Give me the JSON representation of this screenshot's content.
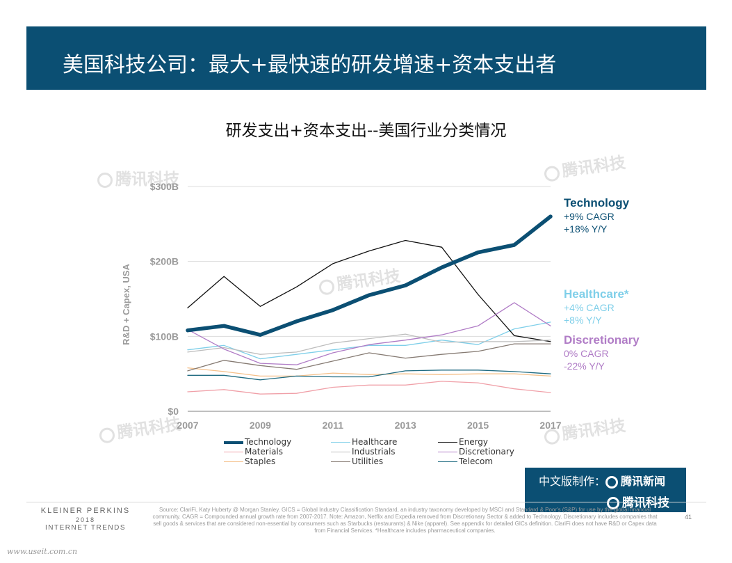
{
  "header": {
    "title": "美国科技公司：最大+最快速的研发增速+资本支出者"
  },
  "watermark_text": "腾讯科技",
  "chart_data": {
    "type": "line",
    "title": "研发支出+资本支出--美国行业分类情况",
    "ylabel": "R&D + Capex, USA",
    "xlabel": "",
    "x": [
      2007,
      2008,
      2009,
      2010,
      2011,
      2012,
      2013,
      2014,
      2015,
      2016,
      2017
    ],
    "x_ticks": [
      "2007",
      "2009",
      "2011",
      "2013",
      "2015",
      "2017"
    ],
    "y_ticks": [
      "$0",
      "$100B",
      "$200B",
      "$300B"
    ],
    "ylim": [
      0,
      300
    ],
    "grid": true,
    "legend_position": "bottom",
    "series": [
      {
        "name": "Technology",
        "color": "#0b4f73",
        "width": 5.5,
        "values": [
          108,
          114,
          102,
          120,
          135,
          155,
          168,
          192,
          212,
          222,
          260
        ]
      },
      {
        "name": "Healthcare",
        "color": "#7fcfe9",
        "width": 1.3,
        "values": [
          82,
          88,
          70,
          76,
          82,
          88,
          88,
          95,
          89,
          110,
          119
        ]
      },
      {
        "name": "Energy",
        "color": "#111111",
        "width": 1.3,
        "values": [
          138,
          180,
          140,
          166,
          197,
          214,
          228,
          219,
          156,
          101,
          93
        ]
      },
      {
        "name": "Materials",
        "color": "#f0a0a8",
        "width": 1.3,
        "values": [
          26,
          29,
          23,
          24,
          32,
          35,
          35,
          40,
          38,
          30,
          25
        ]
      },
      {
        "name": "Industrials",
        "color": "#bdbdbd",
        "width": 1.3,
        "values": [
          79,
          85,
          76,
          79,
          91,
          97,
          103,
          92,
          93,
          93,
          95
        ]
      },
      {
        "name": "Discretionary",
        "color": "#b07cc6",
        "width": 1.3,
        "values": [
          109,
          83,
          64,
          62,
          78,
          89,
          95,
          102,
          114,
          145,
          114
        ]
      },
      {
        "name": "Staples",
        "color": "#f5c08a",
        "width": 1.3,
        "values": [
          58,
          53,
          47,
          47,
          51,
          49,
          50,
          49,
          50,
          50,
          47
        ]
      },
      {
        "name": "Utilities",
        "color": "#857a72",
        "width": 1.3,
        "values": [
          54,
          68,
          61,
          56,
          67,
          78,
          71,
          76,
          80,
          90,
          90
        ]
      },
      {
        "name": "Telecom",
        "color": "#1e6a80",
        "width": 1.3,
        "values": [
          48,
          48,
          42,
          47,
          46,
          46,
          54,
          55,
          55,
          53,
          50
        ]
      }
    ],
    "annotations": [
      {
        "name": "Technology",
        "color": "#0b4f73",
        "line1": "+9% CAGR",
        "line2": "+18% Y/Y"
      },
      {
        "name": "Healthcare*",
        "color": "#7fcfe9",
        "line1": "+4% CAGR",
        "line2": "+8% Y/Y"
      },
      {
        "name": "Discretionary",
        "color": "#b07cc6",
        "line1": "0% CAGR",
        "line2": "-22% Y/Y"
      }
    ]
  },
  "badge": {
    "line1": "中文版制作：",
    "line1_brand": "腾讯新闻",
    "line2_brand": "腾讯科技"
  },
  "footer": {
    "brand_line1": "KLEINER PERKINS",
    "brand_line2": "2018",
    "brand_line3": "INTERNET TRENDS",
    "source": "Source: ClariFi, Katy Huberty @ Morgan Stanley. GICS = Global Industry Classification Standard, an industry taxonomy developed by MSCI and Standard & Poor's (S&P) for use by the global financial community. CAGR = Compounded annual growth rate from 2007-2017. Note: Amazon, Netflix and Expedia removed from Discretionary Sector & added to Technology. Discretionary includes companies that sell goods & services that are considered non-essential by consumers such as Starbucks (restaurants) & Nike (apparel). See appendix for detailed GICs definition. ClariFi does not have R&D or Capex data from Financial Services. *Healthcare includes pharmaceutical companies.",
    "page_number": "41",
    "site": "www.useit.com.cn"
  }
}
